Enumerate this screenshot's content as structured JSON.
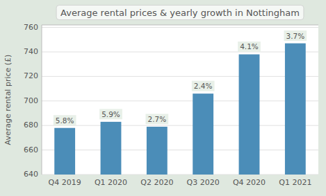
{
  "chart_data": {
    "type": "bar",
    "title": "Average rental prices & yearly growth in Nottingham",
    "categories": [
      "Q4 2019",
      "Q1 2020",
      "Q2 2020",
      "Q3 2020",
      "Q4 2020",
      "Q1 2021"
    ],
    "values": [
      678,
      683,
      679,
      706,
      738,
      747
    ],
    "annotations": [
      "5.8%",
      "5.9%",
      "2.7%",
      "2.4%",
      "4.1%",
      "3.7%"
    ],
    "color": "#4b8db8",
    "ylabel": "Average rental price (£)",
    "ylim": [
      640,
      762
    ],
    "yticks": [
      640,
      660,
      680,
      700,
      720,
      740,
      760
    ],
    "grid": true
  }
}
